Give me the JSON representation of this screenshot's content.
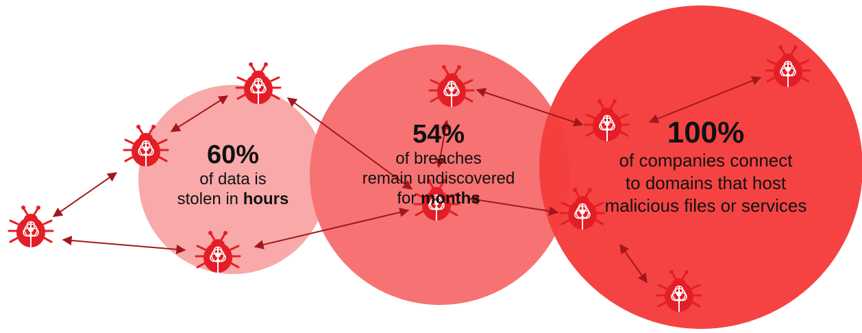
{
  "colors": {
    "circle_small": "#f9a9a9",
    "circle_mid": "#f77272",
    "circle_large": "#f53d3d",
    "bug": "#e41e26",
    "arrow": "#a4161b",
    "text": "#111111"
  },
  "icons": [
    "virus-bug-icon",
    "biohazard-icon"
  ],
  "stats": [
    {
      "percent": "60%",
      "line1": "of data is",
      "line2_prefix": "stolen in ",
      "line2_bold": "hours"
    },
    {
      "percent": "54%",
      "line1": "of breaches",
      "line2": "remain undiscovered",
      "line3_prefix": "for ",
      "line3_bold": "months"
    },
    {
      "percent": "100%",
      "line1": "of companies connect",
      "line2": "to domains that host",
      "line3": "malicious files or services"
    }
  ]
}
